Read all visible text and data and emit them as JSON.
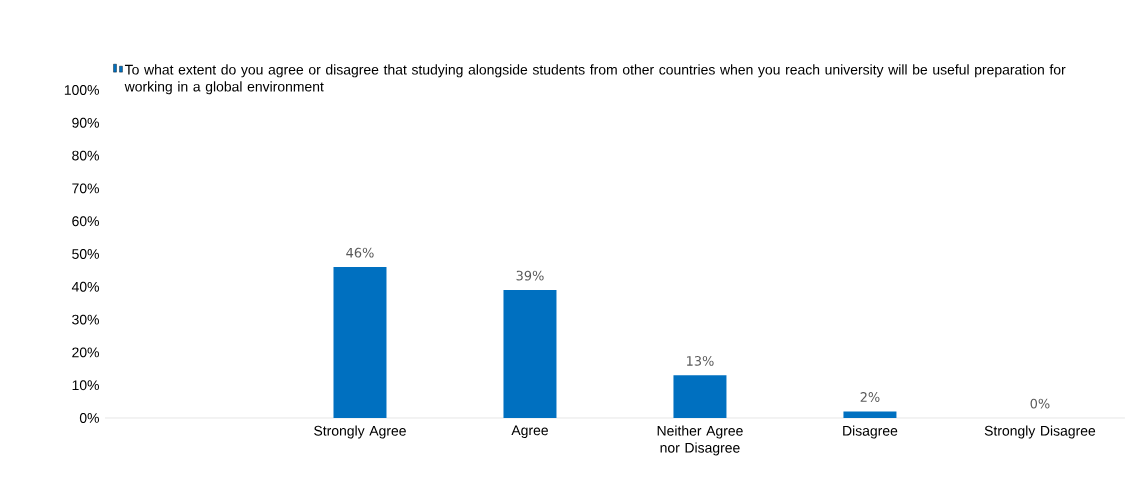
{
  "chart_data": {
    "type": "bar",
    "categories": [
      null,
      "Strongly Agree",
      "Agree",
      "Neither Agree nor Disagree",
      "Disagree",
      "Strongly Disagree"
    ],
    "series": [
      {
        "name": "To what extent do you agree or disagree that studying alongside students from other countries when you reach university will be useful preparation for working in a global environment",
        "color": "#0070c0",
        "values": [
          null,
          46,
          39,
          13,
          2,
          0
        ],
        "value_labels": [
          null,
          "46%",
          "39%",
          "13%",
          "2%",
          "0%"
        ]
      }
    ],
    "ylim": [
      0,
      100
    ],
    "yticks": [
      {
        "value": 0,
        "label": "0%"
      },
      {
        "value": 10,
        "label": "10%"
      },
      {
        "value": 20,
        "label": "20%"
      },
      {
        "value": 30,
        "label": "30%"
      },
      {
        "value": 40,
        "label": "40%"
      },
      {
        "value": 50,
        "label": "50%"
      },
      {
        "value": 60,
        "label": "60%"
      },
      {
        "value": 70,
        "label": "70%"
      },
      {
        "value": 80,
        "label": "80%"
      },
      {
        "value": 90,
        "label": "90%"
      },
      {
        "value": 100,
        "label": "100%"
      }
    ],
    "legend": "top"
  }
}
